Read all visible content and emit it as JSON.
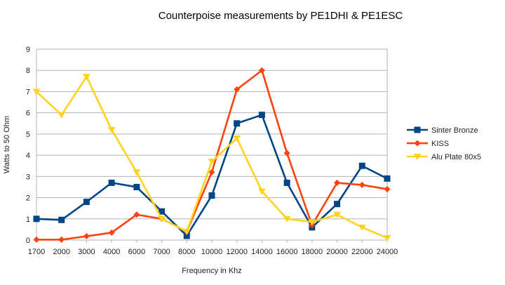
{
  "chart_data": {
    "type": "line",
    "title": "Counterpoise measurements by PE1DHI & PE1ESC",
    "xlabel": "Frequency in Khz",
    "ylabel": "Watts to 50 Ohm",
    "ylim": [
      0,
      9
    ],
    "yticks": [
      "0",
      "1",
      "2",
      "3",
      "4",
      "5",
      "6",
      "7",
      "8",
      "9"
    ],
    "grid": true,
    "legend_position": "right",
    "categories": [
      "1700",
      "2000",
      "3000",
      "4000",
      "6000",
      "7000",
      "8000",
      "10000",
      "12000",
      "14000",
      "16000",
      "18000",
      "20000",
      "22000",
      "24000"
    ],
    "series": [
      {
        "name": "Sinter Bronze",
        "color": "#004586",
        "marker": "square",
        "values": [
          1.0,
          0.95,
          1.8,
          2.7,
          2.5,
          1.35,
          0.2,
          2.1,
          5.5,
          5.9,
          2.7,
          0.6,
          1.7,
          3.5,
          2.9
        ]
      },
      {
        "name": "KISS",
        "color": "#ff420e",
        "marker": "diamond",
        "values": [
          0.02,
          0.02,
          0.18,
          0.35,
          1.2,
          1.0,
          0.4,
          3.2,
          7.1,
          8.0,
          4.1,
          0.7,
          2.7,
          2.6,
          2.4
        ]
      },
      {
        "name": "Alu Plate 80x5",
        "color": "#ffd320",
        "marker": "triangle-down",
        "values": [
          7.0,
          5.9,
          7.7,
          5.2,
          3.2,
          1.0,
          0.4,
          3.7,
          4.8,
          2.3,
          1.0,
          0.85,
          1.2,
          0.6,
          0.1
        ]
      }
    ]
  }
}
